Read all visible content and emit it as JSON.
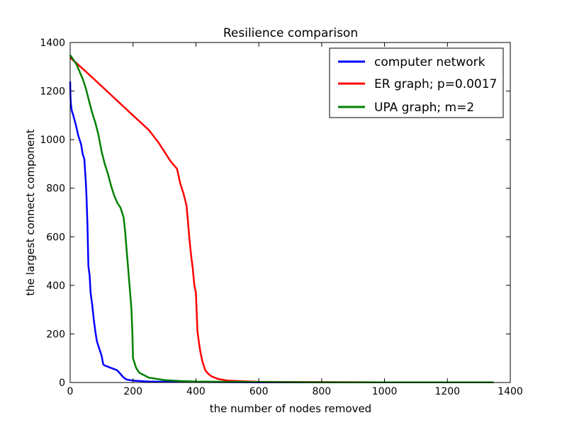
{
  "chart_data": {
    "type": "line",
    "title": "Resilience comparison",
    "xlabel": "the number of nodes removed",
    "ylabel": "the largest connect component",
    "xlim": [
      0,
      1400
    ],
    "ylim": [
      0,
      1400
    ],
    "xticks": [
      0,
      200,
      400,
      600,
      800,
      1000,
      1200,
      1400
    ],
    "yticks": [
      0,
      200,
      400,
      600,
      800,
      1000,
      1200,
      1400
    ],
    "grid": false,
    "legend_position": "top-right",
    "series": [
      {
        "name": "computer network",
        "color": "#0000ff",
        "x": [
          0,
          1,
          2,
          5,
          10,
          15,
          20,
          25,
          30,
          35,
          40,
          45,
          48,
          50,
          52,
          55,
          58,
          60,
          62,
          65,
          70,
          75,
          80,
          85,
          90,
          95,
          100,
          105,
          110,
          120,
          130,
          140,
          150,
          160,
          170,
          180,
          200,
          220,
          250,
          300,
          400,
          600,
          1000,
          1347
        ],
        "y": [
          1239,
          1180,
          1150,
          1120,
          1100,
          1075,
          1050,
          1020,
          1000,
          980,
          940,
          920,
          860,
          820,
          760,
          650,
          480,
          460,
          440,
          370,
          320,
          260,
          210,
          170,
          150,
          130,
          110,
          75,
          70,
          65,
          60,
          55,
          50,
          35,
          20,
          12,
          8,
          6,
          4,
          3,
          2,
          1,
          1,
          1
        ]
      },
      {
        "name": "ER graph; p=0.0017",
        "color": "#ff0000",
        "x": [
          0,
          50,
          100,
          150,
          200,
          250,
          280,
          300,
          320,
          340,
          350,
          360,
          370,
          375,
          380,
          385,
          390,
          395,
          400,
          405,
          410,
          415,
          420,
          425,
          430,
          440,
          450,
          470,
          500,
          550,
          600,
          700,
          1000,
          1347
        ],
        "y": [
          1338,
          1280,
          1220,
          1160,
          1100,
          1040,
          990,
          950,
          910,
          880,
          820,
          780,
          730,
          660,
          580,
          520,
          470,
          400,
          370,
          210,
          160,
          120,
          90,
          70,
          50,
          35,
          25,
          15,
          8,
          5,
          3,
          2,
          1,
          1
        ]
      },
      {
        "name": "UPA graph; m=2",
        "color": "#008000",
        "x": [
          0,
          10,
          20,
          30,
          40,
          50,
          60,
          70,
          80,
          90,
          100,
          110,
          120,
          130,
          140,
          150,
          160,
          170,
          175,
          180,
          185,
          190,
          195,
          198,
          200,
          205,
          210,
          220,
          250,
          300,
          350,
          400,
          500,
          600,
          800,
          1000,
          1347
        ],
        "y": [
          1348,
          1330,
          1310,
          1280,
          1250,
          1210,
          1160,
          1110,
          1070,
          1020,
          950,
          900,
          860,
          810,
          770,
          740,
          720,
          680,
          620,
          540,
          460,
          380,
          300,
          200,
          100,
          80,
          60,
          40,
          20,
          10,
          6,
          4,
          3,
          2,
          1,
          1,
          1
        ]
      }
    ]
  }
}
